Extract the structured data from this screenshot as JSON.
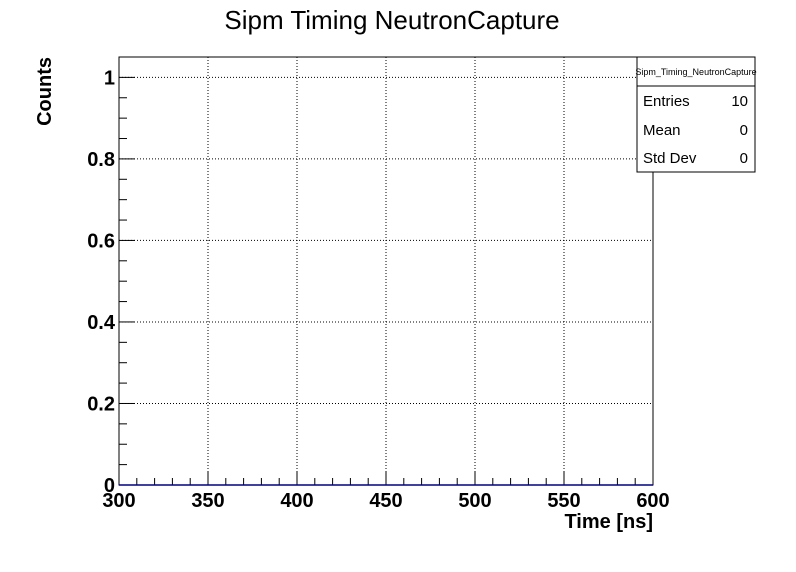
{
  "chart_data": {
    "type": "bar",
    "title": "Sipm Timing NeutronCapture",
    "xlabel": "Time [ns]",
    "ylabel": "Counts",
    "xlim": [
      300,
      600
    ],
    "ylim": [
      0,
      1.05
    ],
    "x_ticks": [
      "300",
      "350",
      "400",
      "450",
      "500",
      "550",
      "600"
    ],
    "y_ticks": [
      "0",
      "0.2",
      "0.4",
      "0.6",
      "0.8",
      "1"
    ],
    "grid": true,
    "series": [
      {
        "values": []
      }
    ],
    "stats_box": {
      "placement": "top-right",
      "name": "Sipm_Timing_NeutronCapture",
      "rows": [
        {
          "label": "Entries",
          "value": "10"
        },
        {
          "label": "Mean",
          "value": "0"
        },
        {
          "label": "Std Dev",
          "value": "0"
        }
      ]
    }
  }
}
